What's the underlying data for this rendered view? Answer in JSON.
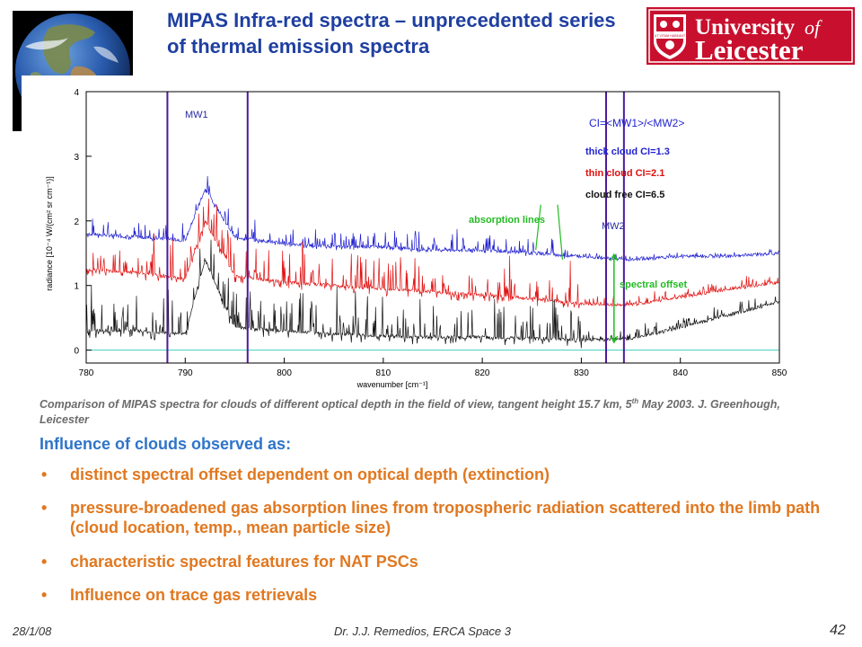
{
  "slide": {
    "title": "MIPAS Infra-red spectra – unprecedented series of thermal emission spectra",
    "logo": {
      "line1": "University",
      "of": "of",
      "line2": "Leicester",
      "crest_motto": "UT VITAM HABEANT",
      "crest_color": "#c8102e"
    },
    "caption_a": "Comparison of  MIPAS spectra for clouds of different optical depth in the field of view, tangent height 15.7 km, 5",
    "caption_sup": "th",
    "caption_b": " May 2003. J. Greenhough, Leicester",
    "heading": "Influence of clouds observed as:",
    "bullet_char": "•",
    "bullets": [
      "distinct spectral offset dependent on optical depth (extinction)",
      "pressure-broadened gas absorption lines from tropospheric radiation scattered into the limb path (cloud location, temp., mean particle size)",
      "characteristic spectral features for NAT PSCs",
      "Influence on trace gas retrievals"
    ],
    "footer": {
      "date": "28/1/08",
      "author": "Dr. J.J. Remedios, ERCA Space 3",
      "page": "42"
    },
    "colors": {
      "title": "#1f3fa0",
      "heading": "#2f74c8",
      "bullets": "#e07820",
      "caption": "#6b6b6b"
    }
  },
  "chart_data": {
    "type": "line",
    "xlabel": "wavenumber  [cm⁻¹]",
    "ylabel": "radiance  [10⁻⁴ W/(cm² sr cm⁻¹)]",
    "xlim": [
      780,
      850
    ],
    "ylim": [
      -0.2,
      4
    ],
    "xticks": [
      780,
      790,
      800,
      810,
      820,
      830,
      840,
      850
    ],
    "yticks": [
      0,
      1,
      2,
      3,
      4
    ],
    "legend_title": "CI=<MW1>/<MW2>",
    "annotations": {
      "mw1": "MW1",
      "mw2": "MW2",
      "absorption": "absorption lines",
      "offset": "spectral offset"
    },
    "microwindows": [
      {
        "name": "MW1",
        "x": [
          788.2,
          796.3
        ]
      },
      {
        "name": "MW2",
        "x": [
          832.5,
          834.3
        ]
      }
    ],
    "baseline": 0,
    "series": [
      {
        "name": "thick cloud CI=1.3",
        "color": "#1f1fd0",
        "x": [
          780,
          785,
          790,
          792,
          795,
          800,
          805,
          810,
          815,
          820,
          825,
          830,
          835,
          840,
          845,
          850
        ],
        "y": [
          1.8,
          1.75,
          1.7,
          2.5,
          1.75,
          1.65,
          1.6,
          1.6,
          1.55,
          1.55,
          1.5,
          1.45,
          1.4,
          1.45,
          1.45,
          1.5
        ]
      },
      {
        "name": "thin cloud CI=2.1",
        "color": "#e01010",
        "x": [
          780,
          785,
          790,
          792,
          795,
          800,
          805,
          810,
          815,
          820,
          825,
          830,
          835,
          840,
          845,
          850
        ],
        "y": [
          1.25,
          1.2,
          1.1,
          2.0,
          1.15,
          1.05,
          1.0,
          0.95,
          0.9,
          0.85,
          0.8,
          0.72,
          0.7,
          0.82,
          0.95,
          1.05
        ]
      },
      {
        "name": "cloud free CI=6.5",
        "color": "#111111",
        "x": [
          780,
          785,
          790,
          792,
          795,
          800,
          805,
          810,
          815,
          820,
          825,
          830,
          835,
          840,
          845,
          850
        ],
        "y": [
          0.3,
          0.3,
          0.25,
          1.4,
          0.35,
          0.3,
          0.25,
          0.22,
          0.2,
          0.2,
          0.18,
          0.15,
          0.18,
          0.35,
          0.55,
          0.75
        ]
      }
    ]
  }
}
